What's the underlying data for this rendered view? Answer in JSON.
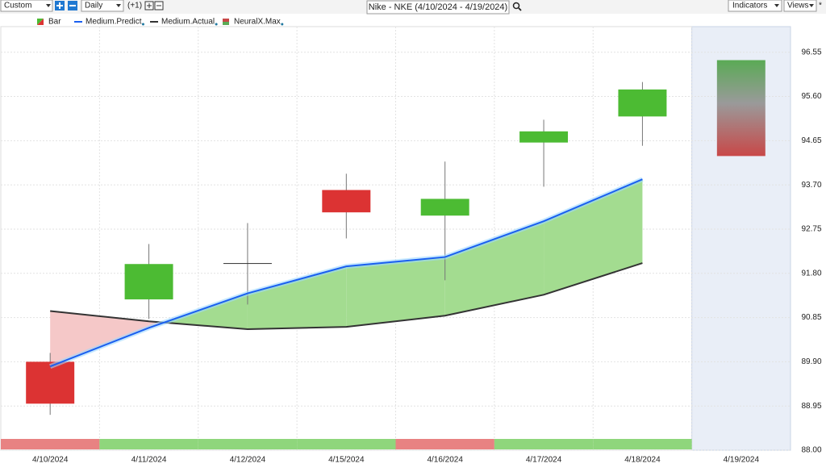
{
  "toolbar": {
    "range": "Custom",
    "period": "Daily",
    "offset": "(+1)",
    "indicators": "Indicators",
    "views": "Views",
    "star": "*"
  },
  "chart_data": {
    "type": "candlestick",
    "title": "Nike - NKE (4/10/2024 - 4/19/2024)",
    "categories": [
      "4/10/2024",
      "4/11/2024",
      "4/12/2024",
      "4/15/2024",
      "4/16/2024",
      "4/17/2024",
      "4/18/2024",
      "4/19/2024"
    ],
    "series": [
      {
        "name": "Bar",
        "up_color": "#4cbb33",
        "down_color": "#dc3333",
        "open": [
          89.9,
          91.24,
          92.02,
          93.59,
          93.04,
          94.61,
          95.17,
          null
        ],
        "high": [
          90.09,
          92.43,
          92.88,
          93.94,
          94.2,
          95.1,
          95.91,
          null
        ],
        "low": [
          88.76,
          90.82,
          91.13,
          92.55,
          91.65,
          93.66,
          94.54,
          null
        ],
        "close": [
          89.0,
          92.0,
          92.02,
          93.11,
          93.4,
          94.85,
          95.75,
          null
        ]
      },
      {
        "name": "Medium.Predict",
        "color": "#1a5ff0",
        "values": [
          89.8,
          90.63,
          91.37,
          91.95,
          92.15,
          92.92,
          93.82,
          null
        ]
      },
      {
        "name": "Medium.Actual",
        "color": "#333333",
        "values": [
          90.99,
          90.77,
          90.6,
          90.65,
          90.89,
          91.34,
          92.02,
          null
        ]
      },
      {
        "name": "NeuralX.Max",
        "low": [
          null,
          null,
          null,
          null,
          null,
          null,
          null,
          94.32
        ],
        "high": [
          null,
          null,
          null,
          null,
          null,
          null,
          null,
          96.38
        ]
      }
    ],
    "strip_colors": [
      "#e88282",
      "#8fd67c",
      "#8fd67c",
      "#8fd67c",
      "#e88282",
      "#8fd67c",
      "#8fd67c",
      null
    ],
    "ylim": [
      88,
      97.1
    ],
    "yticks": [
      {
        "value": 88,
        "label": "88.00"
      },
      88.95,
      {
        "value": 89.9,
        "label": "89.90"
      },
      90.85,
      {
        "value": 91.8,
        "label": "91.80"
      },
      92.75,
      {
        "value": 93.7,
        "label": "93.70"
      },
      94.65,
      {
        "value": 95.6,
        "label": "95.60"
      },
      96.55
    ],
    "grid": true
  }
}
